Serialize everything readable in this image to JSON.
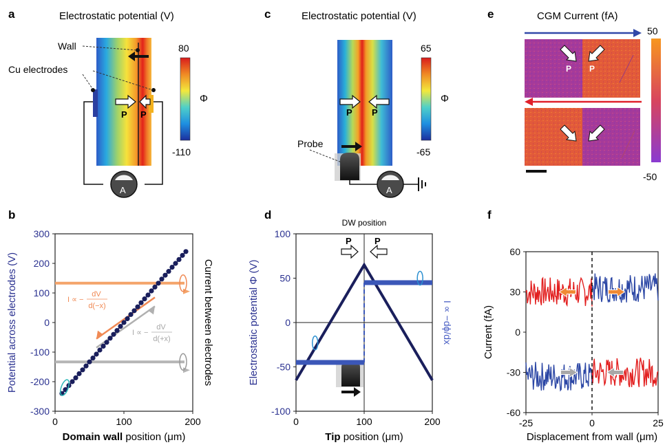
{
  "panel_labels": {
    "a": "a",
    "b": "b",
    "c": "c",
    "d": "d",
    "e": "e",
    "f": "f"
  },
  "panel_a": {
    "title": "Electrostatic potential (V)",
    "wall_label": "Wall",
    "electrodes_label": "Cu electrodes",
    "polarization_label": "P",
    "colorbar_max": "80",
    "colorbar_min": "-110",
    "colorbar_symbol": "Φ",
    "ammeter_label": "A"
  },
  "panel_c": {
    "title": "Electrostatic potential (V)",
    "probe_label": "Probe",
    "polarization_label": "P",
    "colorbar_max": "65",
    "colorbar_min": "-65",
    "colorbar_symbol": "Φ",
    "ammeter_label": "A"
  },
  "panel_e": {
    "title": "CGM Current (fA)",
    "polarization_label": "P",
    "colorbar_max": "50",
    "colorbar_min": "-50"
  },
  "annotations": {
    "b_formula_upper_lhs": "I ∝ −",
    "b_formula_upper_num": "dV",
    "b_formula_upper_den": "d(−x)",
    "b_formula_lower_lhs": "I ∝ −",
    "b_formula_lower_num": "dV",
    "b_formula_lower_den": "d(+x)",
    "d_top_label": "DW position",
    "d_right_axis_label": "I ∝ −dϕ/dx",
    "d_polarization_label": "P"
  },
  "chart_data": [
    {
      "id": "b",
      "type": "scatter",
      "xlabel_bold": "Domain wall",
      "xlabel_rest": " position (μm)",
      "ylabel": "Potential across electrodes (V)",
      "y2label": "Current between electrodes",
      "xlim": [
        0,
        200
      ],
      "ylim": [
        -300,
        300
      ],
      "xticks": [
        0,
        100,
        200
      ],
      "yticks": [
        -300,
        -200,
        -100,
        0,
        100,
        200,
        300
      ],
      "series": [
        {
          "x": [
            10,
            15,
            20,
            25,
            30,
            35,
            40,
            45,
            50,
            55,
            60,
            65,
            70,
            75,
            80,
            85,
            90,
            95,
            100,
            105,
            110,
            115,
            120,
            125,
            130,
            135,
            140,
            145,
            150,
            155,
            160,
            165,
            170,
            175,
            180,
            185,
            190
          ],
          "y": [
            -240,
            -227,
            -213,
            -200,
            -187,
            -173,
            -160,
            -147,
            -133,
            -120,
            -107,
            -93,
            -80,
            -67,
            -53,
            -40,
            -27,
            -13,
            0,
            13,
            27,
            40,
            53,
            67,
            80,
            93,
            107,
            120,
            133,
            147,
            160,
            173,
            187,
            200,
            213,
            227,
            240
          ],
          "color": "#1a1f5c"
        }
      ],
      "current_levels": [
        {
          "y": 133,
          "color": "#f4a46a"
        },
        {
          "y": -133,
          "color": "#b5b5b5"
        }
      ]
    },
    {
      "id": "d",
      "type": "line",
      "xlabel_bold": "Tip",
      "xlabel_rest": " position (μm)",
      "ylabel": "Electrostatic potential Φ (V)",
      "xlim": [
        0,
        200
      ],
      "ylim": [
        -100,
        100
      ],
      "xticks": [
        0,
        100,
        200
      ],
      "yticks": [
        -100,
        -50,
        0,
        50,
        100
      ],
      "series": [
        {
          "x": [
            0,
            100,
            200
          ],
          "y": [
            -65,
            65,
            -65
          ],
          "color": "#1a1f5c"
        },
        {
          "x": [
            0,
            100
          ],
          "y": [
            -45,
            -45
          ],
          "color": "#3b57b8"
        },
        {
          "x": [
            100,
            200
          ],
          "y": [
            45,
            45
          ],
          "color": "#3b57b8"
        }
      ]
    },
    {
      "id": "f",
      "type": "line",
      "xlabel": "Displacement from wall (μm)",
      "ylabel": "Current (fA)",
      "xlim": [
        -25,
        25
      ],
      "ylim": [
        -60,
        60
      ],
      "xticks": [
        -25,
        0,
        25
      ],
      "yticks": [
        -60,
        -30,
        0,
        30,
        60
      ],
      "series": [
        {
          "x": [
            -25,
            0
          ],
          "y": [
            30,
            30
          ],
          "color": "#e21f1f"
        },
        {
          "x": [
            0,
            25
          ],
          "y": [
            33,
            33
          ],
          "color": "#2c47a5"
        },
        {
          "x": [
            -25,
            0
          ],
          "y": [
            -33,
            -33
          ],
          "color": "#2c47a5"
        },
        {
          "x": [
            0,
            25
          ],
          "y": [
            -30,
            -30
          ],
          "color": "#e21f1f"
        }
      ]
    }
  ]
}
